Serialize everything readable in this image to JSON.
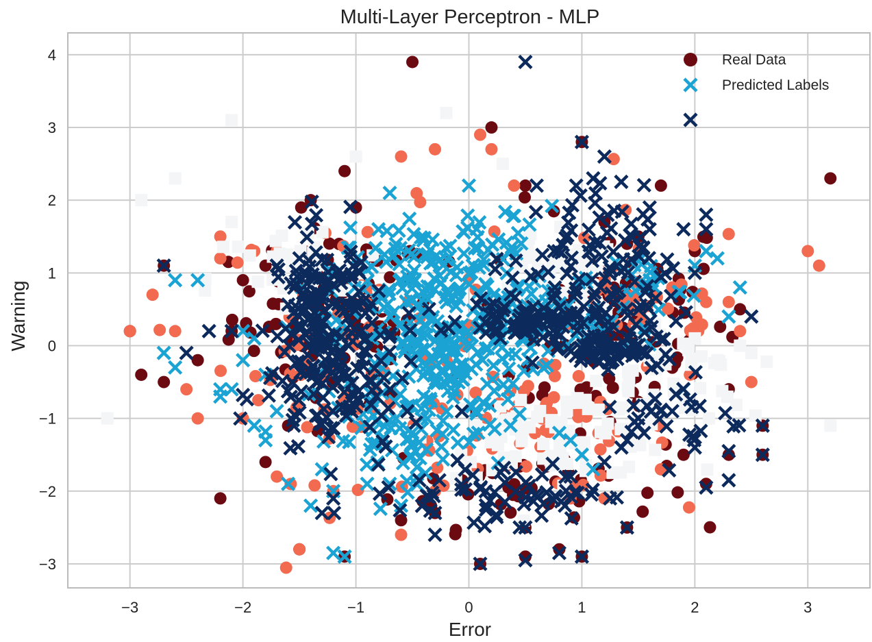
{
  "chart_data": {
    "type": "scatter",
    "title": "Multi-Layer Perceptron - MLP",
    "xlabel": "Error",
    "ylabel": "Warning",
    "xlim": [
      -3.55,
      3.55
    ],
    "ylim": [
      -3.33,
      4.3
    ],
    "xticks": [
      -3,
      -2,
      -1,
      0,
      1,
      2,
      3
    ],
    "yticks": [
      -3,
      -2,
      -1,
      0,
      1,
      2,
      3,
      4
    ],
    "xtick_labels": [
      "−3",
      "−2",
      "−1",
      "0",
      "1",
      "2",
      "3"
    ],
    "ytick_labels": [
      "−3",
      "−2",
      "−1",
      "0",
      "1",
      "2",
      "3",
      "4"
    ],
    "grid": true,
    "legend_position": "top-right",
    "colors": {
      "real_dark": "#6b0a10",
      "real_mid": "#f26a50",
      "real_light": "#f3f5f7",
      "pred_light": "#1ba3d4",
      "pred_dark": "#0c2a5c",
      "grid": "#cccccc",
      "axes": "#bbbbbb"
    },
    "series": [
      {
        "name": "Real Data",
        "marker": "circle",
        "color": "#6b0a10",
        "points": [
          [
            -0.5,
            3.9
          ],
          [
            -1.1,
            2.4
          ],
          [
            -1.4,
            2.0
          ],
          [
            0.2,
            3.0
          ],
          [
            1.0,
            2.8
          ],
          [
            -1.0,
            1.9
          ],
          [
            0.5,
            2.2
          ],
          [
            1.5,
            1.5
          ],
          [
            1.7,
            2.2
          ],
          [
            2.0,
            1.3
          ],
          [
            -2.4,
            -0.2
          ],
          [
            -1.6,
            -1.1
          ],
          [
            -1.8,
            -1.6
          ],
          [
            -0.6,
            -2.4
          ],
          [
            -0.3,
            -2.3
          ],
          [
            0.1,
            -3.0
          ],
          [
            0.5,
            -2.9
          ],
          [
            0.8,
            -2.8
          ],
          [
            1.0,
            -2.9
          ],
          [
            0.5,
            -2.5
          ],
          [
            1.4,
            -2.5
          ],
          [
            2.3,
            -1.5
          ],
          [
            2.6,
            -1.5
          ],
          [
            2.1,
            -1.9
          ],
          [
            2.6,
            -1.1
          ],
          [
            -2.2,
            -2.1
          ],
          [
            -1.5,
            -2.8
          ],
          [
            -1.1,
            -2.9
          ],
          [
            1.9,
            -1.5
          ],
          [
            2.3,
            -0.6
          ],
          [
            2.4,
            0.5
          ],
          [
            3.2,
            2.3
          ],
          [
            -2.1,
            0.2
          ],
          [
            -2.7,
            1.1
          ],
          [
            -3.0,
            0.2
          ],
          [
            -2.9,
            -0.4
          ],
          [
            -2.7,
            -0.5
          ],
          [
            -2.0,
            0.9
          ],
          [
            -1.8,
            1.1
          ],
          [
            1.2,
            1.7
          ],
          [
            1.4,
            1.4
          ]
        ],
        "clusters": [
          {
            "x": -1.2,
            "y": 0.4,
            "sx": 0.45,
            "sy": 0.6,
            "n": 90
          },
          {
            "x": 1.2,
            "y": 0.3,
            "sx": 0.6,
            "sy": 0.8,
            "n": 90
          },
          {
            "x": 0.5,
            "y": -1.9,
            "sx": 0.6,
            "sy": 0.3,
            "n": 40
          }
        ]
      },
      {
        "name": "",
        "marker": "circle",
        "color": "#f26a50",
        "points": [
          [
            -2.2,
            1.5
          ],
          [
            -1.9,
            1.3
          ],
          [
            -1.7,
            1.3
          ],
          [
            -0.3,
            2.7
          ],
          [
            0.1,
            2.9
          ],
          [
            0.2,
            2.7
          ],
          [
            -0.6,
            2.6
          ],
          [
            0.4,
            2.2
          ],
          [
            2.5,
            -0.5
          ],
          [
            2.4,
            0.2
          ],
          [
            2.3,
            0.6
          ],
          [
            1.8,
            0.8
          ],
          [
            -2.8,
            0.7
          ],
          [
            -2.6,
            0.2
          ],
          [
            -2.5,
            -0.6
          ],
          [
            -2.4,
            -1.0
          ],
          [
            -3.0,
            0.2
          ],
          [
            -1.5,
            -2.8
          ],
          [
            -0.6,
            -2.6
          ],
          [
            3.0,
            1.3
          ],
          [
            3.1,
            1.1
          ],
          [
            -1.7,
            -1.8
          ],
          [
            -1.2,
            -2.0
          ],
          [
            -0.3,
            -2.0
          ],
          [
            0.9,
            -2.1
          ],
          [
            1.2,
            -2.1
          ],
          [
            1.7,
            -1.7
          ],
          [
            2.1,
            0.6
          ],
          [
            -2.0,
            -1.0
          ],
          [
            -2.2,
            1.2
          ]
        ],
        "clusters": [
          {
            "x": -1.0,
            "y": 0.0,
            "sx": 0.6,
            "sy": 0.9,
            "n": 70
          },
          {
            "x": 0.6,
            "y": -1.2,
            "sx": 0.6,
            "sy": 0.4,
            "n": 60
          },
          {
            "x": 1.5,
            "y": 0.6,
            "sx": 0.5,
            "sy": 0.6,
            "n": 40
          }
        ]
      },
      {
        "name": "",
        "marker": "square",
        "color": "#f3f5f7",
        "points": [
          [
            -2.1,
            3.1
          ],
          [
            -0.2,
            3.2
          ],
          [
            -1.0,
            2.6
          ],
          [
            0.3,
            2.5
          ],
          [
            -2.9,
            2.0
          ],
          [
            -2.6,
            2.3
          ],
          [
            -2.1,
            1.7
          ],
          [
            -3.2,
            -1.0
          ],
          [
            3.2,
            -1.1
          ],
          [
            2.4,
            0.0
          ],
          [
            2.5,
            -0.1
          ],
          [
            2.2,
            -0.2
          ],
          [
            2.0,
            0.1
          ]
        ],
        "clusters": [
          {
            "x": 0.7,
            "y": 0.9,
            "sx": 0.35,
            "sy": 0.3,
            "n": 60
          },
          {
            "x": 0.8,
            "y": -1.2,
            "sx": 0.55,
            "sy": 0.3,
            "n": 90
          },
          {
            "x": 1.7,
            "y": -0.4,
            "sx": 0.4,
            "sy": 0.4,
            "n": 40
          },
          {
            "x": -1.5,
            "y": 0.9,
            "sx": 0.4,
            "sy": 0.4,
            "n": 40
          }
        ]
      },
      {
        "name": "Predicted Labels",
        "marker": "x",
        "color": "#1ba3d4",
        "points": [
          [
            -2.7,
            -0.1
          ],
          [
            -2.6,
            0.9
          ],
          [
            -2.4,
            0.9
          ],
          [
            -2.6,
            -0.3
          ],
          [
            -2.2,
            -0.7
          ],
          [
            -2.1,
            -0.6
          ],
          [
            -2.0,
            -0.2
          ],
          [
            -2.0,
            0.2
          ],
          [
            -1.9,
            -1.1
          ],
          [
            -1.8,
            -1.3
          ],
          [
            -1.6,
            -1.9
          ],
          [
            -1.4,
            -2.2
          ],
          [
            -1.3,
            -1.7
          ],
          [
            -1.2,
            -2.0
          ],
          [
            -1.1,
            -2.9
          ],
          [
            -1.2,
            -2.85
          ],
          [
            -0.6,
            -2.2
          ],
          [
            -0.8,
            1.6
          ],
          [
            -0.7,
            2.1
          ],
          [
            0.0,
            2.2
          ],
          [
            1.9,
            -0.6
          ],
          [
            2.0,
            1.1
          ],
          [
            2.1,
            1.3
          ],
          [
            2.2,
            1.2
          ],
          [
            2.3,
            0.4
          ],
          [
            2.4,
            0.8
          ],
          [
            1.6,
            0.9
          ],
          [
            0.9,
            -1.3
          ],
          [
            0.8,
            -1.2
          ],
          [
            1.0,
            -1.5
          ],
          [
            1.1,
            -1.7
          ],
          [
            -2.2,
            -0.6
          ],
          [
            -1.9,
            0.1
          ],
          [
            -1.8,
            -0.4
          ],
          [
            -1.7,
            -0.9
          ],
          [
            -0.9,
            -1.9
          ],
          [
            -0.7,
            -1.9
          ]
        ],
        "clusters": [
          {
            "x": -0.3,
            "y": 0.1,
            "sx": 0.45,
            "sy": 0.65,
            "n": 260
          },
          {
            "x": -0.1,
            "y": 1.2,
            "sx": 0.5,
            "sy": 0.35,
            "n": 80
          },
          {
            "x": -0.6,
            "y": -1.3,
            "sx": 0.4,
            "sy": 0.3,
            "n": 60
          },
          {
            "x": 0.9,
            "y": 0.25,
            "sx": 0.4,
            "sy": 0.2,
            "n": 50
          },
          {
            "x": 1.6,
            "y": 0.9,
            "sx": 0.15,
            "sy": 0.2,
            "n": 20
          }
        ]
      },
      {
        "name": "",
        "marker": "x",
        "color": "#0c2a5c",
        "points": [
          [
            0.5,
            3.9
          ],
          [
            1.0,
            2.8
          ],
          [
            1.2,
            2.6
          ],
          [
            1.1,
            2.3
          ],
          [
            0.95,
            2.2
          ],
          [
            0.6,
            2.2
          ],
          [
            1.6,
            1.9
          ],
          [
            1.9,
            1.6
          ],
          [
            2.1,
            1.8
          ],
          [
            1.6,
            1.6
          ],
          [
            -1.7,
            1.1
          ],
          [
            -1.5,
            1.2
          ],
          [
            -2.7,
            1.1
          ],
          [
            -2.5,
            -0.1
          ],
          [
            -2.3,
            0.2
          ],
          [
            -2.1,
            0.2
          ],
          [
            0.5,
            -2.5
          ],
          [
            0.45,
            -2.5
          ],
          [
            0.1,
            -3.0
          ],
          [
            0.5,
            -2.95
          ],
          [
            0.8,
            -2.85
          ],
          [
            1.0,
            -2.9
          ],
          [
            1.4,
            -2.5
          ],
          [
            -0.3,
            -2.6
          ],
          [
            -0.3,
            -2.3
          ],
          [
            2.3,
            -1.85
          ],
          [
            2.6,
            -1.5
          ],
          [
            2.3,
            -1.45
          ],
          [
            2.1,
            -1.95
          ],
          [
            2.6,
            -1.1
          ],
          [
            2.0,
            -1.4
          ],
          [
            1.8,
            -0.9
          ],
          [
            1.7,
            -0.9
          ],
          [
            1.5,
            -1.0
          ],
          [
            0.85,
            -2.2
          ],
          [
            0.9,
            -1.8
          ],
          [
            1.2,
            -1.6
          ],
          [
            1.25,
            -2.1
          ],
          [
            1.35,
            -1.4
          ],
          [
            1.55,
            -1.2
          ],
          [
            1.4,
            -1.3
          ],
          [
            2.5,
            0.4
          ],
          [
            2.0,
            1.0
          ],
          [
            2.1,
            1.6
          ],
          [
            -1.55,
            -1.1
          ],
          [
            -1.3,
            -2.3
          ],
          [
            -1.2,
            -2.1
          ]
        ],
        "clusters": [
          {
            "x": -1.3,
            "y": 0.35,
            "sx": 0.22,
            "sy": 0.6,
            "n": 170
          },
          {
            "x": -1.1,
            "y": -0.7,
            "sx": 0.35,
            "sy": 0.5,
            "n": 80
          },
          {
            "x": 0.55,
            "y": 0.35,
            "sx": 0.3,
            "sy": 0.12,
            "n": 90
          },
          {
            "x": 1.2,
            "y": -0.05,
            "sx": 0.25,
            "sy": 0.12,
            "n": 60
          },
          {
            "x": 0.95,
            "y": 1.2,
            "sx": 0.3,
            "sy": 0.5,
            "n": 70
          },
          {
            "x": 1.4,
            "y": 0.5,
            "sx": 0.25,
            "sy": 0.5,
            "n": 50
          },
          {
            "x": 0.3,
            "y": -2.0,
            "sx": 0.45,
            "sy": 0.2,
            "n": 60
          },
          {
            "x": 1.9,
            "y": -1.0,
            "sx": 0.25,
            "sy": 0.3,
            "n": 25
          }
        ]
      }
    ]
  }
}
